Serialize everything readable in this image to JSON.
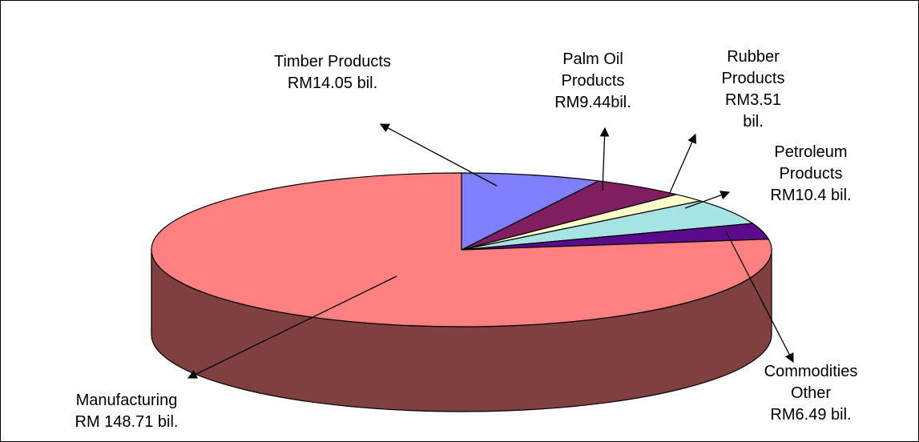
{
  "chart_data": {
    "type": "pie",
    "categories": [
      "Timber Products",
      "Palm Oil Products",
      "Rubber Products",
      "Petroleum Products",
      "Commodities Other",
      "Manufacturing"
    ],
    "values": [
      14.05,
      9.44,
      3.51,
      10.4,
      6.49,
      148.71
    ],
    "value_labels": [
      "RM14.05 bil.",
      "RM9.44bil.",
      "RM3.51 bil.",
      "RM10.4 bil.",
      "RM6.49 bil.",
      "RM 148.71 bil."
    ],
    "colors": [
      "#8080ff",
      "#7f1f5f",
      "#ffffcc",
      "#a6e3e3",
      "#5a0a8a",
      "#ff8080"
    ]
  }
}
